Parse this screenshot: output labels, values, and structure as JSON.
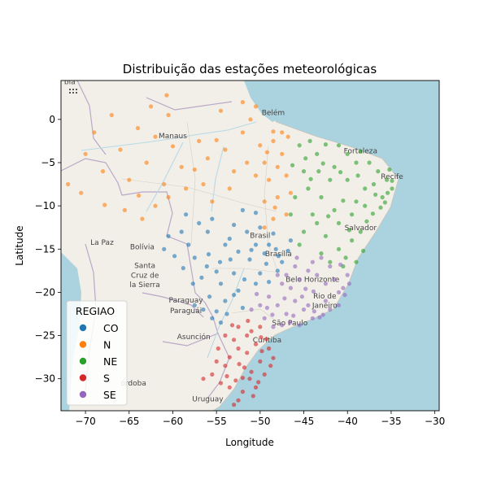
{
  "chart_data": {
    "type": "scatter",
    "title": "Distribuição das estações meteorológicas",
    "xlabel": "Longitude",
    "ylabel": "Latitude",
    "xlim": [
      -72.8,
      -29.5
    ],
    "ylim": [
      -33.7,
      4.5
    ],
    "xticks": [
      -70,
      -65,
      -60,
      -55,
      -50,
      -45,
      -40,
      -35,
      -30
    ],
    "yticks": [
      0,
      -5,
      -10,
      -15,
      -20,
      -25,
      -30
    ],
    "xtick_labels": [
      "−70",
      "−65",
      "−60",
      "−55",
      "−50",
      "−45",
      "−40",
      "−35",
      "−30"
    ],
    "ytick_labels": [
      "0",
      "−5",
      "−10",
      "−15",
      "−20",
      "−25",
      "−30"
    ],
    "grid": false,
    "legend": {
      "title": "REGIAO",
      "placement": "bottom-left",
      "entries": [
        "CO",
        "N",
        "NE",
        "S",
        "SE"
      ]
    },
    "series": [
      {
        "name": "CO",
        "color": "#1f77b4",
        "points": [
          [
            -47.9,
            -15.8
          ],
          [
            -46.5,
            -14.0
          ],
          [
            -48.5,
            -13.2
          ],
          [
            -49.3,
            -16.7
          ],
          [
            -50.5,
            -14.5
          ],
          [
            -51.2,
            -16.2
          ],
          [
            -52.5,
            -15.3
          ],
          [
            -53.5,
            -13.8
          ],
          [
            -55.9,
            -15.6
          ],
          [
            -54.6,
            -16.5
          ],
          [
            -56.1,
            -17.0
          ],
          [
            -57.5,
            -16.0
          ],
          [
            -58.2,
            -14.5
          ],
          [
            -59.0,
            -13.0
          ],
          [
            -57.0,
            -12.0
          ],
          [
            -55.5,
            -11.5
          ],
          [
            -53.0,
            -12.2
          ],
          [
            -51.5,
            -13.0
          ],
          [
            -50.0,
            -12.5
          ],
          [
            -49.0,
            -14.5
          ],
          [
            -48.0,
            -17.5
          ],
          [
            -50.0,
            -17.8
          ],
          [
            -51.8,
            -18.5
          ],
          [
            -53.0,
            -17.8
          ],
          [
            -54.5,
            -19.0
          ],
          [
            -55.8,
            -20.5
          ],
          [
            -54.0,
            -21.0
          ],
          [
            -53.0,
            -20.3
          ],
          [
            -55.0,
            -22.2
          ],
          [
            -56.5,
            -22.0
          ],
          [
            -57.7,
            -19.0
          ],
          [
            -52.5,
            -19.8
          ],
          [
            -50.5,
            -19.0
          ],
          [
            -49.0,
            -18.8
          ],
          [
            -47.5,
            -16.5
          ],
          [
            -46.8,
            -15.2
          ],
          [
            -60.5,
            -13.5
          ],
          [
            -58.5,
            -11.0
          ],
          [
            -61.0,
            -15.0
          ],
          [
            -56.0,
            -13.0
          ],
          [
            -54.0,
            -14.5
          ],
          [
            -52.0,
            -10.5
          ],
          [
            -50.5,
            -10.8
          ],
          [
            -49.5,
            -15.5
          ],
          [
            -48.2,
            -15.0
          ],
          [
            -54.5,
            -23.5
          ],
          [
            -55.5,
            -23.0
          ],
          [
            -53.8,
            -22.5
          ],
          [
            -52.0,
            -21.8
          ],
          [
            -57.5,
            -21.5
          ],
          [
            -56.7,
            -18.3
          ],
          [
            -55.0,
            -17.6
          ],
          [
            -53.4,
            -16.2
          ],
          [
            -51.0,
            -15.1
          ],
          [
            -59.8,
            -15.8
          ],
          [
            -58.8,
            -17.2
          ]
        ]
      },
      {
        "name": "N",
        "color": "#ff7f0e",
        "points": [
          [
            -60.0,
            -3.1
          ],
          [
            -48.5,
            -1.4
          ],
          [
            -67.8,
            -9.9
          ],
          [
            -63.9,
            -8.8
          ],
          [
            -60.7,
            2.8
          ],
          [
            -51.1,
            0.0
          ],
          [
            -48.3,
            -10.2
          ],
          [
            -70.0,
            -4.0
          ],
          [
            -68.0,
            -6.0
          ],
          [
            -66.0,
            -3.5
          ],
          [
            -65.0,
            -7.0
          ],
          [
            -63.0,
            -5.0
          ],
          [
            -62.0,
            -2.0
          ],
          [
            -61.0,
            -7.5
          ],
          [
            -59.0,
            -5.5
          ],
          [
            -57.0,
            -2.5
          ],
          [
            -56.0,
            -4.5
          ],
          [
            -55.0,
            -2.4
          ],
          [
            -54.0,
            -3.5
          ],
          [
            -53.0,
            -6.0
          ],
          [
            -52.0,
            -1.5
          ],
          [
            -50.0,
            -3.0
          ],
          [
            -49.5,
            -5.0
          ],
          [
            -49.0,
            -7.0
          ],
          [
            -48.0,
            -9.0
          ],
          [
            -47.5,
            -4.0
          ],
          [
            -46.8,
            -2.0
          ],
          [
            -47.0,
            -6.5
          ],
          [
            -46.5,
            -8.5
          ],
          [
            -48.5,
            -11.5
          ],
          [
            -49.5,
            -12.5
          ],
          [
            -47.0,
            -11.0
          ],
          [
            -72.0,
            -7.5
          ],
          [
            -70.5,
            -8.5
          ],
          [
            -69.0,
            -1.5
          ],
          [
            -67.0,
            0.5
          ],
          [
            -64.0,
            -1.0
          ],
          [
            -62.5,
            1.5
          ],
          [
            -60.5,
            0.5
          ],
          [
            -58.5,
            -8.0
          ],
          [
            -56.5,
            -7.5
          ],
          [
            -55.5,
            -9.5
          ],
          [
            -54.5,
            1.0
          ],
          [
            -52.0,
            2.0
          ],
          [
            -50.5,
            1.5
          ],
          [
            -51.5,
            -5.0
          ],
          [
            -50.5,
            -6.5
          ],
          [
            -49.5,
            -9.5
          ],
          [
            -48.5,
            -2.5
          ],
          [
            -47.5,
            -1.5
          ],
          [
            -65.5,
            -10.5
          ],
          [
            -63.5,
            -11.5
          ],
          [
            -62.0,
            -10.0
          ],
          [
            -60.5,
            -9.0
          ],
          [
            -57.5,
            -5.8
          ],
          [
            -53.5,
            -8.0
          ],
          [
            -49.2,
            -3.8
          ],
          [
            -48.0,
            -5.5
          ]
        ]
      },
      {
        "name": "NE",
        "color": "#2ca02c",
        "points": [
          [
            -38.5,
            -3.7
          ],
          [
            -34.9,
            -8.0
          ],
          [
            -38.5,
            -13.0
          ],
          [
            -42.8,
            -5.1
          ],
          [
            -44.3,
            -2.5
          ],
          [
            -35.7,
            -9.6
          ],
          [
            -37.1,
            -10.9
          ],
          [
            -35.2,
            -5.8
          ],
          [
            -34.9,
            -7.1
          ],
          [
            -40.5,
            -9.4
          ],
          [
            -39.0,
            -5.0
          ],
          [
            -41.0,
            -3.0
          ],
          [
            -42.0,
            -7.0
          ],
          [
            -43.0,
            -9.0
          ],
          [
            -44.0,
            -11.0
          ],
          [
            -45.0,
            -13.0
          ],
          [
            -42.5,
            -13.5
          ],
          [
            -41.0,
            -12.0
          ],
          [
            -39.5,
            -11.0
          ],
          [
            -38.0,
            -10.0
          ],
          [
            -37.0,
            -7.5
          ],
          [
            -36.5,
            -6.0
          ],
          [
            -37.5,
            -5.0
          ],
          [
            -40.0,
            -7.0
          ],
          [
            -41.5,
            -5.5
          ],
          [
            -43.5,
            -4.0
          ],
          [
            -45.5,
            -3.0
          ],
          [
            -45.0,
            -6.0
          ],
          [
            -44.5,
            -8.0
          ],
          [
            -46.0,
            -9.0
          ],
          [
            -46.5,
            -11.0
          ],
          [
            -45.5,
            -14.5
          ],
          [
            -43.0,
            -15.5
          ],
          [
            -41.0,
            -15.0
          ],
          [
            -39.5,
            -14.0
          ],
          [
            -40.5,
            -17.0
          ],
          [
            -39.0,
            -16.5
          ],
          [
            -42.0,
            -16.5
          ],
          [
            -36.0,
            -9.0
          ],
          [
            -35.5,
            -7.0
          ],
          [
            -38.0,
            -8.0
          ],
          [
            -39.0,
            -9.5
          ],
          [
            -41.5,
            -10.5
          ],
          [
            -43.5,
            -12.0
          ],
          [
            -40.0,
            -4.0
          ],
          [
            -42.5,
            -2.9
          ],
          [
            -44.8,
            -4.5
          ],
          [
            -38.8,
            -6.5
          ],
          [
            -36.8,
            -8.7
          ],
          [
            -37.8,
            -11.8
          ],
          [
            -39.8,
            -12.8
          ],
          [
            -42.2,
            -11.2
          ],
          [
            -44.2,
            -6.9
          ],
          [
            -43.3,
            -6.0
          ],
          [
            -40.8,
            -6.1
          ],
          [
            -46.3,
            -5.3
          ],
          [
            -38.2,
            -15.2
          ],
          [
            -40.2,
            -16.0
          ],
          [
            -36.2,
            -10.2
          ],
          [
            -35.4,
            -8.5
          ]
        ]
      },
      {
        "name": "S",
        "color": "#d62728",
        "points": [
          [
            -51.2,
            -30.0
          ],
          [
            -49.3,
            -25.4
          ],
          [
            -48.5,
            -27.6
          ],
          [
            -53.8,
            -29.7
          ],
          [
            -52.4,
            -28.3
          ],
          [
            -51.0,
            -29.2
          ],
          [
            -50.0,
            -28.0
          ],
          [
            -49.5,
            -29.5
          ],
          [
            -50.5,
            -31.0
          ],
          [
            -52.0,
            -31.5
          ],
          [
            -53.5,
            -31.0
          ],
          [
            -54.5,
            -30.5
          ],
          [
            -55.5,
            -29.5
          ],
          [
            -56.5,
            -30.0
          ],
          [
            -53.0,
            -33.0
          ],
          [
            -52.5,
            -32.5
          ],
          [
            -51.5,
            -27.0
          ],
          [
            -52.5,
            -26.5
          ],
          [
            -53.5,
            -27.5
          ],
          [
            -54.0,
            -28.5
          ],
          [
            -55.0,
            -28.0
          ],
          [
            -50.5,
            -26.0
          ],
          [
            -51.5,
            -25.0
          ],
          [
            -53.0,
            -25.5
          ],
          [
            -54.0,
            -25.0
          ],
          [
            -52.5,
            -24.0
          ],
          [
            -51.0,
            -24.5
          ],
          [
            -50.0,
            -24.0
          ],
          [
            -49.0,
            -26.5
          ],
          [
            -48.8,
            -28.5
          ],
          [
            -49.8,
            -26.8
          ],
          [
            -52.8,
            -30.2
          ],
          [
            -51.8,
            -28.7
          ],
          [
            -50.2,
            -30.4
          ],
          [
            -54.8,
            -26.5
          ],
          [
            -53.2,
            -23.8
          ],
          [
            -51.4,
            -23.3
          ],
          [
            -50.8,
            -32.0
          ],
          [
            -49.9,
            -25.2
          ],
          [
            -52.0,
            -29.9
          ]
        ]
      },
      {
        "name": "SE",
        "color": "#9467bd",
        "points": [
          [
            -43.2,
            -22.9
          ],
          [
            -46.6,
            -23.5
          ],
          [
            -43.9,
            -19.9
          ],
          [
            -40.3,
            -20.3
          ],
          [
            -45.0,
            -22.0
          ],
          [
            -47.0,
            -22.5
          ],
          [
            -48.0,
            -21.5
          ],
          [
            -49.0,
            -20.5
          ],
          [
            -50.0,
            -21.5
          ],
          [
            -51.0,
            -22.0
          ],
          [
            -49.5,
            -23.0
          ],
          [
            -48.5,
            -24.0
          ],
          [
            -47.5,
            -23.8
          ],
          [
            -46.0,
            -21.0
          ],
          [
            -44.5,
            -21.5
          ],
          [
            -42.0,
            -22.0
          ],
          [
            -41.0,
            -21.5
          ],
          [
            -40.5,
            -19.5
          ],
          [
            -41.5,
            -18.5
          ],
          [
            -42.5,
            -19.0
          ],
          [
            -43.5,
            -18.0
          ],
          [
            -44.5,
            -17.5
          ],
          [
            -45.5,
            -18.5
          ],
          [
            -46.5,
            -19.5
          ],
          [
            -47.5,
            -19.0
          ],
          [
            -48.0,
            -18.0
          ],
          [
            -46.0,
            -17.0
          ],
          [
            -44.0,
            -16.5
          ],
          [
            -42.0,
            -17.0
          ],
          [
            -40.0,
            -18.0
          ],
          [
            -41.0,
            -20.0
          ],
          [
            -44.0,
            -23.0
          ],
          [
            -45.5,
            -23.8
          ],
          [
            -42.5,
            -21.0
          ],
          [
            -43.8,
            -22.2
          ],
          [
            -42.8,
            -22.6
          ],
          [
            -45.2,
            -20.5
          ],
          [
            -47.2,
            -20.7
          ],
          [
            -48.6,
            -22.6
          ],
          [
            -50.4,
            -20.2
          ],
          [
            -39.8,
            -19.0
          ],
          [
            -40.8,
            -16.8
          ],
          [
            -43.0,
            -16.0
          ],
          [
            -45.8,
            -16.0
          ],
          [
            -47.0,
            -18.0
          ],
          [
            -49.2,
            -21.8
          ],
          [
            -46.2,
            -22.7
          ],
          [
            -44.8,
            -19.6
          ]
        ]
      }
    ],
    "map_labels": [
      {
        "text": "Manaus",
        "lon": -60.0,
        "lat": -2.2
      },
      {
        "text": "Belém",
        "lon": -48.5,
        "lat": 0.5
      },
      {
        "text": "Fortaleza",
        "lon": -38.5,
        "lat": -3.9
      },
      {
        "text": "Recife",
        "lon": -34.9,
        "lat": -6.9
      },
      {
        "text": "Salvador",
        "lon": -38.5,
        "lat": -12.8
      },
      {
        "text": "Brasil",
        "lon": -50.0,
        "lat": -13.7
      },
      {
        "text": "Brasília",
        "lon": -47.9,
        "lat": -15.8
      },
      {
        "text": "Belo Horizonte",
        "lon": -44.0,
        "lat": -18.8
      },
      {
        "text": "Rio de",
        "lon": -42.6,
        "lat": -20.7
      },
      {
        "text": "Janeiro",
        "lon": -42.6,
        "lat": -21.8
      },
      {
        "text": "São Paulo",
        "lon": -46.6,
        "lat": -23.8
      },
      {
        "text": "Curitiba",
        "lon": -49.2,
        "lat": -25.8
      },
      {
        "text": "La Paz",
        "lon": -68.1,
        "lat": -14.5
      },
      {
        "text": "Bolívia",
        "lon": -63.5,
        "lat": -15.0
      },
      {
        "text": "Santa",
        "lon": -63.2,
        "lat": -17.2
      },
      {
        "text": "Cruz de",
        "lon": -63.2,
        "lat": -18.3
      },
      {
        "text": "la Sierra",
        "lon": -63.2,
        "lat": -19.4
      },
      {
        "text": "Paraguay",
        "lon": -58.5,
        "lat": -21.2
      },
      {
        "text": "Paraguái",
        "lon": -58.5,
        "lat": -22.4
      },
      {
        "text": "Asunción",
        "lon": -57.6,
        "lat": -25.4
      },
      {
        "text": "órdoba",
        "lon": -64.5,
        "lat": -30.8
      },
      {
        "text": "Uruguay",
        "lon": -56.0,
        "lat": -32.6
      },
      {
        "text": "bia",
        "lon": -71.8,
        "lat": 4.1
      }
    ]
  }
}
